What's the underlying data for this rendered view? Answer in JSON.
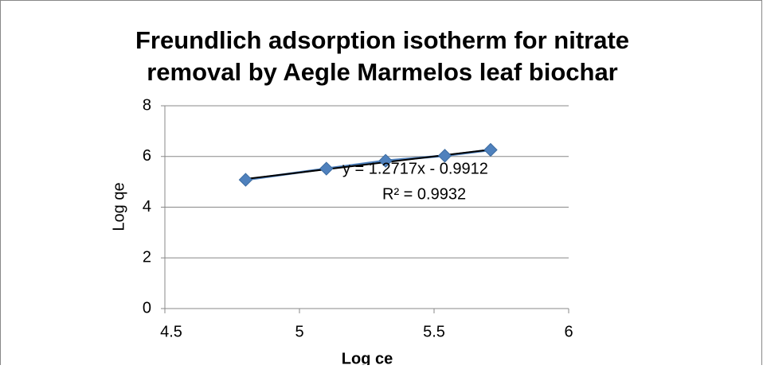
{
  "chart_data": {
    "type": "scatter",
    "title": [
      "Freundlich adsorption isotherm for nitrate",
      "removal by Aegle Marmelos leaf biochar"
    ],
    "x_label": "Log ce",
    "y_label": "Log qe",
    "series": [
      {
        "color": "#4f81bd",
        "x": [
          4.8,
          5.1,
          5.32,
          5.54,
          5.71
        ],
        "values": [
          5.08,
          5.52,
          5.83,
          6.03,
          6.26
        ]
      }
    ],
    "trendline": {
      "slope": 1.2717,
      "intercept": -0.9912,
      "color": "#000000",
      "equation": "y = 1.2717x - 0.9912",
      "r_squared": "R² = 0.9932"
    },
    "xlim": [
      4.5,
      6
    ],
    "xticks": [
      4.5,
      5,
      5.5,
      6
    ],
    "ylim": [
      0,
      8
    ],
    "yticks": [
      0,
      2,
      4,
      6,
      8
    ],
    "grid": true
  }
}
